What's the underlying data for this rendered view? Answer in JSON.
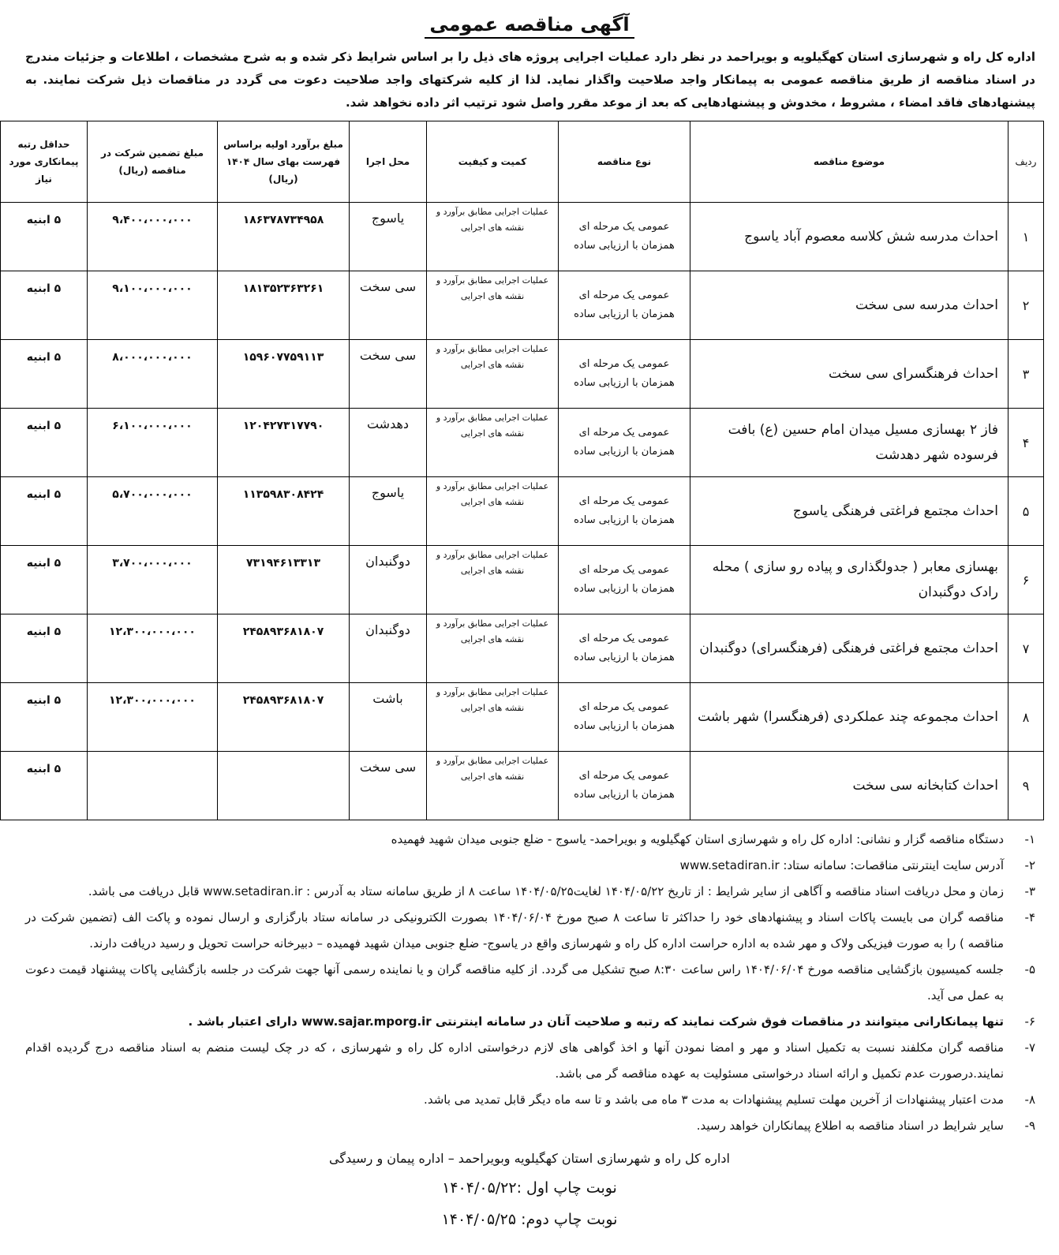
{
  "title": "آگهی مناقصه عمومی",
  "intro": "اداره کل راه و شهرسازی استان کهگیلویه و بویراحمد در نظر دارد عملیات اجرایی پروژه های ذیل را بر اساس شرایط ذکر شده و به شرح مشخصات ، اطلاعات و جزئیات مندرج در اسناد مناقصه از طریق مناقصه عمومی به پیمانکار واجد صلاحیت واگذار نماید. لذا از کلیه شرکتهای واجد صلاحیت دعوت می گردد در مناقصات ذیل شرکت نمایند. به پیشنهادهای فاقد امضاء ، مشروط ، مخدوش و پیشنهادهایی که بعد از موعد مقرر واصل شود ترتیب اثر داده نخواهد شد.",
  "table": {
    "headers": [
      "ردیف",
      "موضوع مناقصه",
      "نوع مناقصه",
      "کمیت و کیفیت",
      "محل اجرا",
      "مبلغ برآورد اولیه براساس فهرست بهای سال ۱۴۰۴ (ریال)",
      "مبلغ تضمین شرکت در مناقصه (ریال)",
      "حداقل رتبه پیمانکاری مورد نیاز"
    ],
    "rows": [
      {
        "no": "۱",
        "subject": "احداث مدرسه شش کلاسه معصوم آباد یاسوج",
        "type": "عمومی یک مرحله ای همزمان با ارزیابی ساده",
        "qty": "عملیات اجرایی مطابق برآورد و نقشه های اجرایی",
        "loc": "یاسوج",
        "estimate": "۱۸۶۳۷۸۷۳۴۹۵۸",
        "guarantee": "۹،۴۰۰،۰۰۰،۰۰۰",
        "rank": "۵ ابنیه"
      },
      {
        "no": "۲",
        "subject": "احداث مدرسه سی سخت",
        "type": "عمومی یک مرحله ای همزمان با ارزیابی ساده",
        "qty": "عملیات اجرایی مطابق برآورد و نقشه های اجرایی",
        "loc": "سی سخت",
        "estimate": "۱۸۱۳۵۲۳۶۳۲۶۱",
        "guarantee": "۹،۱۰۰،۰۰۰،۰۰۰",
        "rank": "۵ ابنیه"
      },
      {
        "no": "۳",
        "subject": "احداث فرهنگسرای سی سخت",
        "type": "عمومی یک مرحله ای همزمان با ارزیابی ساده",
        "qty": "عملیات اجرایی مطابق برآورد و نقشه های اجرایی",
        "loc": "سی سخت",
        "estimate": "۱۵۹۶۰۷۷۵۹۱۱۳",
        "guarantee": "۸،۰۰۰،۰۰۰،۰۰۰",
        "rank": "۵ ابنیه"
      },
      {
        "no": "۴",
        "subject": "فاز ۲ بهسازی مسیل میدان امام حسین (ع) بافت فرسوده شهر دهدشت",
        "type": "عمومی یک مرحله ای همزمان با ارزیابی ساده",
        "qty": "عملیات اجرایی مطابق برآورد و نقشه های اجرایی",
        "loc": "دهدشت",
        "estimate": "۱۲۰۴۲۷۳۱۷۷۹۰",
        "guarantee": "۶،۱۰۰،۰۰۰،۰۰۰",
        "rank": "۵ ابنیه"
      },
      {
        "no": "۵",
        "subject": "احداث مجتمع فراغتی فرهنگی یاسوج",
        "type": "عمومی یک مرحله ای همزمان با ارزیابی ساده",
        "qty": "عملیات اجرایی مطابق برآورد و نقشه های اجرایی",
        "loc": "یاسوج",
        "estimate": "۱۱۳۵۹۸۳۰۸۴۲۴",
        "guarantee": "۵،۷۰۰،۰۰۰،۰۰۰",
        "rank": "۵ ابنیه"
      },
      {
        "no": "۶",
        "subject": "بهسازی معابر ( جدولگذاری و پیاده رو سازی ) محله رادک دوگنبدان",
        "type": "عمومی یک مرحله ای همزمان با ارزیابی ساده",
        "qty": "عملیات اجرایی مطابق برآورد و نقشه های اجرایی",
        "loc": "دوگنبدان",
        "estimate": "۷۳۱۹۴۶۱۳۳۱۳",
        "guarantee": "۳،۷۰۰،۰۰۰،۰۰۰",
        "rank": "۵ ابنیه"
      },
      {
        "no": "۷",
        "subject": "احداث مجتمع فراغتی فرهنگی (فرهنگسرای) دوگنبدان",
        "type": "عمومی یک مرحله ای همزمان با ارزیابی ساده",
        "qty": "عملیات اجرایی مطابق برآورد و نقشه های اجرایی",
        "loc": "دوگنبدان",
        "estimate": "۲۴۵۸۹۳۶۸۱۸۰۷",
        "guarantee": "۱۲،۳۰۰،۰۰۰،۰۰۰",
        "rank": "۵ ابنیه"
      },
      {
        "no": "۸",
        "subject": "احداث مجموعه چند عملکردی (فرهنگسرا) شهر باشت",
        "type": "عمومی یک مرحله ای همزمان با ارزیابی ساده",
        "qty": "عملیات اجرایی مطابق برآورد و نقشه های اجرایی",
        "loc": "باشت",
        "estimate": "۲۴۵۸۹۳۶۸۱۸۰۷",
        "guarantee": "۱۲،۳۰۰،۰۰۰،۰۰۰",
        "rank": "۵ ابنیه"
      },
      {
        "no": "۹",
        "subject": "احداث کتابخانه سی سخت",
        "type": "عمومی یک مرحله ای همزمان با ارزیابی ساده",
        "qty": "عملیات اجرایی مطابق برآورد و نقشه های اجرایی",
        "loc": "سی سخت",
        "estimate": "",
        "guarantee": "",
        "rank": "۵ ابنیه"
      }
    ]
  },
  "notes": [
    {
      "n": "۱-",
      "t": "دستگاه مناقصه گزار و نشانی: اداره کل راه و شهرسازی استان کهگیلویه و بویراحمد- یاسوج - ضلع جنوبی میدان شهید فهمیده"
    },
    {
      "n": "۲-",
      "t": "آدرس سایت اینترنتی مناقصات: سامانه ستاد: www.setadiran.ir"
    },
    {
      "n": "۳-",
      "t": "زمان و محل دریافت اسناد مناقصه و آگاهی از سایر شرایط : از تاریخ ۱۴۰۴/۰۵/۲۲ لغایت۱۴۰۴/۰۵/۲۵ ساعت ۸ از طریق سامانه ستاد به آدرس : www.setadiran.ir قابل دریافت می باشد."
    },
    {
      "n": "۴-",
      "t": "مناقصه گران می بایست پاکات اسناد و پیشنهادهای خود را حداکثر تا ساعت ۸ صبح مورخ ۱۴۰۴/۰۶/۰۴ بصورت الکترونیکی در سامانه ستاد بارگزاری و ارسال نموده و پاکت الف (تضمین شرکت در مناقصه ) را به صورت فیزیکی ولاک و مهر شده به اداره حراست اداره کل راه و شهرسازی واقع در یاسوج- ضلع جنوبی میدان شهید فهمیده – دبیرخانه حراست تحویل و رسید دریافت دارند."
    },
    {
      "n": "۵-",
      "t": "جلسه کمیسیون بازگشایی مناقصه مورخ ۱۴۰۴/۰۶/۰۴ راس ساعت ۸:۳۰ صبح تشکیل می گردد. از کلیه مناقصه گران و یا نماینده رسمی آنها جهت شرکت در جلسه بازگشایی پاکات پیشنهاد قیمت دعوت به عمل می آید."
    },
    {
      "n": "۶-",
      "t": "تنها پیمانکارانی میتوانند در مناقصات فوق شرکت نمایند که رتبه و صلاحیت آنان در سامانه اینترنتی www.sajar.mporg.ir دارای اعتبار باشد .",
      "bold": true
    },
    {
      "n": "۷-",
      "t": "مناقصه گران مکلفند نسبت به تکمیل اسناد و مهر و امضا نمودن آنها و اخذ گواهی های لازم درخواستی اداره کل راه و شهرسازی ، که در چک لیست منضم به اسناد مناقصه درج گردیده اقدام نمایند.درصورت عدم تکمیل و ارائه اسناد درخواستی مسئولیت به عهده مناقصه گر می باشد."
    },
    {
      "n": "۸-",
      "t": "مدت اعتبار پیشنهادات از آخرین مهلت تسلیم پیشنهادات به مدت ۳ ماه می باشد و تا سه ماه دیگر قابل تمدید می باشد."
    },
    {
      "n": "۹-",
      "t": "سایر شرایط در اسناد مناقصه به اطلاع پیمانکاران خواهد رسید."
    }
  ],
  "signature": "اداره کل راه و شهرسازی استان کهگیلویه وبویراحمد – اداره پیمان و رسیدگی",
  "print1": "نوبت چاپ اول :۱۴۰۴/۰۵/۲۲",
  "print2": "نوبت چاپ دوم: ۱۴۰۴/۰۵/۲۵"
}
